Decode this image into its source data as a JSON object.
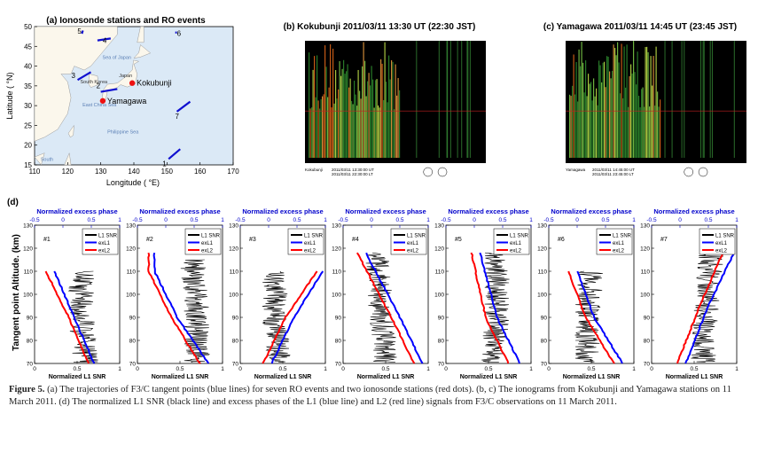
{
  "panel_a": {
    "title": "(a) Ionosonde stations and RO events",
    "xlabel": "Longitude ( °E)",
    "ylabel": "Latitude ( °N)",
    "xticks": [
      "110",
      "120",
      "130",
      "140",
      "150",
      "160",
      "170"
    ],
    "yticks": [
      "15",
      "20",
      "25",
      "30",
      "35",
      "40",
      "45",
      "50"
    ],
    "stations": [
      {
        "name": "Kokubunji",
        "lon": 139.5,
        "lat": 35.7
      },
      {
        "name": "Yamagawa",
        "lon": 130.6,
        "lat": 31.2
      }
    ],
    "place_labels": [
      "Sea of Japan",
      "South Korea",
      "East China Sea",
      "Philippine Sea",
      "Japan",
      "South"
    ],
    "events": [
      {
        "label": "1",
        "lon1": 150.5,
        "lat1": 16.5,
        "lon2": 154,
        "lat2": 19
      },
      {
        "label": "2",
        "lon1": 130,
        "lat1": 33.5,
        "lon2": 135,
        "lat2": 34.2
      },
      {
        "label": "3",
        "lon1": 123,
        "lat1": 36.5,
        "lon2": 127,
        "lat2": 38.5
      },
      {
        "label": "4",
        "lon1": 129,
        "lat1": 46.5,
        "lon2": 133,
        "lat2": 47
      },
      {
        "label": "5",
        "lon1": 124.3,
        "lat1": 48.2,
        "lon2": 124.6,
        "lat2": 49
      },
      {
        "label": "6",
        "lon1": 152.5,
        "lat1": 48.5,
        "lon2": 153,
        "lat2": 48.5
      },
      {
        "label": "7",
        "lon1": 153,
        "lat1": 28.5,
        "lon2": 157,
        "lat2": 31
      }
    ]
  },
  "panel_b": {
    "title": "(b) Kokubunji 2011/03/11 13:30 UT (22:30 JST)",
    "foot1": "Kokubunji",
    "foot2": "2011/03/11 13:30:00 UT",
    "foot3": "2011/03/11 22:30:00 LT"
  },
  "panel_c": {
    "title": "(c) Yamagawa 2011/03/11 14:45 UT (23:45 JST)",
    "foot1": "Yamagawa",
    "foot2": "2011/03/11 14:45:00 UT",
    "foot3": "2011/03/11 23:45:00 LT"
  },
  "panel_d": {
    "label": "(d)",
    "ylabel": "Tangent point Altitude. (km)",
    "top_axis_title": "Normalized excess phase",
    "bottom_axis_title": "Normalized L1 SNR",
    "top_ticks": [
      "-0.5",
      "0",
      "0.5",
      "1"
    ],
    "bottom_ticks": [
      "0",
      "0.5",
      "1"
    ],
    "yticks": [
      "70",
      "80",
      "90",
      "100",
      "110",
      "120",
      "130"
    ],
    "legend": [
      "L1 SNR",
      "exL1",
      "exL2"
    ],
    "colors": {
      "snr": "#000000",
      "exL1": "#0000ff",
      "exL2": "#ff0000",
      "axis_title": "#0000cc"
    }
  },
  "chart_data": {
    "type": "line",
    "title": "",
    "xlabel": "Normalized L1 SNR",
    "x2label": "Normalized excess phase",
    "ylabel": "Tangent point Altitude. (km)",
    "xlim": [
      0,
      1
    ],
    "x2lim": [
      -0.5,
      1
    ],
    "ylim": [
      70,
      130
    ],
    "panels": [
      {
        "name": "#1",
        "snr_mean": [
          [
            70,
            0.6
          ],
          [
            90,
            0.55
          ],
          [
            110,
            0.55
          ]
        ],
        "exL1": [
          [
            70,
            0.55
          ],
          [
            90,
            0.2
          ],
          [
            110,
            -0.15
          ]
        ],
        "exL2": [
          [
            70,
            0.45
          ],
          [
            90,
            0.1
          ],
          [
            110,
            -0.3
          ]
        ]
      },
      {
        "name": "#2",
        "snr_mean": [
          [
            70,
            0.7
          ],
          [
            90,
            0.7
          ],
          [
            115,
            0.65
          ]
        ],
        "exL1": [
          [
            70,
            0.75
          ],
          [
            90,
            0.2
          ],
          [
            110,
            -0.2
          ],
          [
            118,
            -0.2
          ]
        ],
        "exL2": [
          [
            70,
            0.6
          ],
          [
            90,
            0.1
          ],
          [
            110,
            -0.3
          ],
          [
            118,
            -0.3
          ]
        ]
      },
      {
        "name": "#3",
        "snr_mean": [
          [
            70,
            0.45
          ],
          [
            90,
            0.4
          ],
          [
            110,
            0.4
          ]
        ],
        "exL1": [
          [
            70,
            0.05
          ],
          [
            90,
            0.45
          ],
          [
            110,
            0.95
          ]
        ],
        "exL2": [
          [
            70,
            -0.1
          ],
          [
            90,
            0.3
          ],
          [
            110,
            0.85
          ]
        ]
      },
      {
        "name": "#4",
        "snr_mean": [
          [
            70,
            0.5
          ],
          [
            90,
            0.45
          ],
          [
            118,
            0.4
          ]
        ],
        "exL1": [
          [
            70,
            0.9
          ],
          [
            90,
            0.5
          ],
          [
            118,
            -0.1
          ]
        ],
        "exL2": [
          [
            70,
            0.75
          ],
          [
            90,
            0.35
          ],
          [
            118,
            -0.25
          ]
        ]
      },
      {
        "name": "#5",
        "snr_mean": [
          [
            70,
            0.55
          ],
          [
            90,
            0.6
          ],
          [
            118,
            0.6
          ]
        ],
        "exL1": [
          [
            70,
            0.8
          ],
          [
            90,
            0.4
          ],
          [
            118,
            0.1
          ]
        ],
        "exL2": [
          [
            70,
            0.6
          ],
          [
            90,
            0.2
          ],
          [
            118,
            -0.05
          ]
        ]
      },
      {
        "name": "#6",
        "snr_mean": [
          [
            70,
            0.45
          ],
          [
            90,
            0.45
          ],
          [
            110,
            0.5
          ]
        ],
        "exL1": [
          [
            70,
            0.8
          ],
          [
            90,
            0.3
          ],
          [
            110,
            0.0
          ]
        ],
        "exL2": [
          [
            70,
            0.65
          ],
          [
            90,
            0.15
          ],
          [
            110,
            -0.15
          ]
        ]
      },
      {
        "name": "#7",
        "snr_mean": [
          [
            70,
            0.6
          ],
          [
            95,
            0.65
          ],
          [
            118,
            0.7
          ]
        ],
        "exL1": [
          [
            70,
            0.1
          ],
          [
            95,
            0.5
          ],
          [
            118,
            0.95
          ]
        ],
        "exL2": [
          [
            70,
            -0.05
          ],
          [
            95,
            0.35
          ],
          [
            118,
            0.75
          ]
        ]
      }
    ]
  },
  "caption": {
    "label": "Figure 5.",
    "text": " (a) The trajectories of F3/C tangent points (blue lines) for seven RO events and two ionosonde stations (red dots). (b, c) The ionograms from Kokubunji and Yamagawa stations on 11 March 2011. (d) The normalized L1 SNR (black line) and excess phases of the L1 (blue line) and L2 (red line) signals from F3/C observations on 11 March 2011."
  }
}
